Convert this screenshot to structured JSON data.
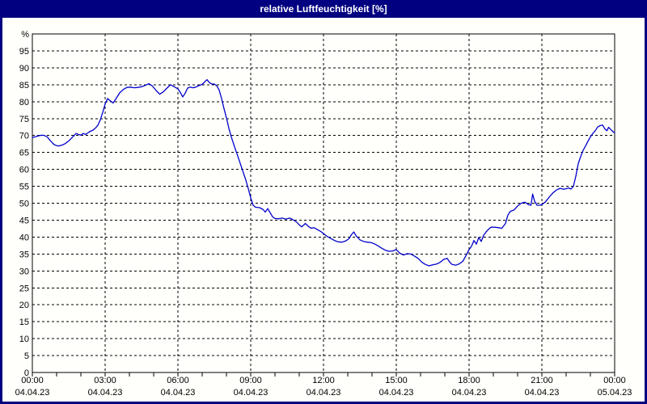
{
  "window": {
    "title": "relative Luftfeuchtigkeit [%]",
    "title_bg": "#000080",
    "title_color": "#ffffff",
    "border_color": "#000080",
    "canvas_bg": "#fffffb"
  },
  "chart_data": {
    "type": "line",
    "title": "relative Luftfeuchtigkeit [%]",
    "ylabel": "%",
    "xlabel": "",
    "ylim": [
      0,
      100
    ],
    "grid": "dashed",
    "legend": "none",
    "line_color": "#0000CD",
    "grid_color": "#000000",
    "axis_color": "#000000",
    "label_color": "#000000",
    "y_ticks": [
      0,
      5,
      10,
      15,
      20,
      25,
      30,
      35,
      40,
      45,
      50,
      55,
      60,
      65,
      70,
      75,
      80,
      85,
      90,
      95
    ],
    "y_unit_label": "%",
    "x_hours_total": 24,
    "x_minor_tick_every_hours": 1,
    "x_ticks": [
      {
        "t": 0,
        "time": "00:00",
        "date": "04.04.23"
      },
      {
        "t": 3,
        "time": "03:00",
        "date": "04.04.23"
      },
      {
        "t": 6,
        "time": "06:00",
        "date": "04.04.23"
      },
      {
        "t": 9,
        "time": "09:00",
        "date": "04.04.23"
      },
      {
        "t": 12,
        "time": "12:00",
        "date": "04.04.23"
      },
      {
        "t": 15,
        "time": "15:00",
        "date": "04.04.23"
      },
      {
        "t": 18,
        "time": "18:00",
        "date": "04.04.23"
      },
      {
        "t": 21,
        "time": "21:00",
        "date": "04.04.23"
      },
      {
        "t": 24,
        "time": "00:00",
        "date": "05.04.23"
      }
    ],
    "series": [
      {
        "name": "relative Luftfeuchtigkeit",
        "points": [
          [
            0.0,
            69.4
          ],
          [
            0.15,
            69.7
          ],
          [
            0.3,
            70.0
          ],
          [
            0.45,
            70.1
          ],
          [
            0.6,
            69.7
          ],
          [
            0.75,
            68.4
          ],
          [
            0.9,
            67.3
          ],
          [
            1.05,
            66.9
          ],
          [
            1.2,
            67.1
          ],
          [
            1.35,
            67.6
          ],
          [
            1.5,
            68.4
          ],
          [
            1.65,
            69.5
          ],
          [
            1.8,
            70.6
          ],
          [
            1.9,
            70.3
          ],
          [
            2.0,
            70.1
          ],
          [
            2.1,
            70.6
          ],
          [
            2.2,
            70.3
          ],
          [
            2.35,
            71.1
          ],
          [
            2.5,
            71.6
          ],
          [
            2.6,
            72.2
          ],
          [
            2.7,
            73.0
          ],
          [
            2.8,
            74.6
          ],
          [
            2.9,
            76.8
          ],
          [
            3.0,
            79.3
          ],
          [
            3.1,
            80.9
          ],
          [
            3.2,
            80.3
          ],
          [
            3.33,
            79.6
          ],
          [
            3.45,
            80.9
          ],
          [
            3.6,
            82.6
          ],
          [
            3.75,
            83.6
          ],
          [
            3.9,
            84.2
          ],
          [
            4.05,
            84.3
          ],
          [
            4.2,
            84.1
          ],
          [
            4.35,
            84.2
          ],
          [
            4.5,
            84.4
          ],
          [
            4.65,
            84.8
          ],
          [
            4.8,
            85.3
          ],
          [
            4.95,
            84.6
          ],
          [
            5.1,
            83.3
          ],
          [
            5.25,
            82.2
          ],
          [
            5.4,
            82.9
          ],
          [
            5.55,
            84.0
          ],
          [
            5.7,
            85.0
          ],
          [
            5.85,
            84.4
          ],
          [
            6.0,
            83.8
          ],
          [
            6.1,
            82.7
          ],
          [
            6.2,
            81.4
          ],
          [
            6.3,
            82.5
          ],
          [
            6.4,
            84.0
          ],
          [
            6.5,
            84.3
          ],
          [
            6.6,
            84.1
          ],
          [
            6.7,
            84.2
          ],
          [
            6.85,
            84.7
          ],
          [
            7.0,
            85.1
          ],
          [
            7.1,
            85.8
          ],
          [
            7.2,
            86.5
          ],
          [
            7.3,
            85.6
          ],
          [
            7.4,
            85.2
          ],
          [
            7.5,
            85.2
          ],
          [
            7.6,
            84.7
          ],
          [
            7.7,
            83.4
          ],
          [
            7.8,
            80.9
          ],
          [
            7.9,
            77.9
          ],
          [
            8.0,
            75.2
          ],
          [
            8.1,
            72.1
          ],
          [
            8.2,
            69.6
          ],
          [
            8.35,
            66.3
          ],
          [
            8.5,
            63.2
          ],
          [
            8.65,
            60.0
          ],
          [
            8.8,
            56.8
          ],
          [
            8.9,
            54.3
          ],
          [
            9.0,
            51.6
          ],
          [
            9.1,
            49.4
          ],
          [
            9.2,
            48.8
          ],
          [
            9.35,
            48.7
          ],
          [
            9.5,
            48.2
          ],
          [
            9.6,
            47.4
          ],
          [
            9.7,
            48.4
          ],
          [
            9.8,
            47.2
          ],
          [
            9.9,
            46.0
          ],
          [
            10.0,
            45.5
          ],
          [
            10.15,
            45.4
          ],
          [
            10.3,
            45.6
          ],
          [
            10.45,
            45.3
          ],
          [
            10.6,
            45.6
          ],
          [
            10.75,
            45.1
          ],
          [
            10.9,
            44.4
          ],
          [
            11.0,
            43.6
          ],
          [
            11.1,
            43.0
          ],
          [
            11.25,
            44.0
          ],
          [
            11.4,
            43.0
          ],
          [
            11.5,
            42.6
          ],
          [
            11.6,
            42.8
          ],
          [
            11.75,
            42.2
          ],
          [
            11.9,
            41.6
          ],
          [
            12.0,
            41.0
          ],
          [
            12.15,
            40.2
          ],
          [
            12.3,
            39.6
          ],
          [
            12.45,
            39.0
          ],
          [
            12.6,
            38.6
          ],
          [
            12.75,
            38.5
          ],
          [
            12.9,
            38.8
          ],
          [
            13.05,
            39.5
          ],
          [
            13.15,
            40.7
          ],
          [
            13.25,
            41.5
          ],
          [
            13.35,
            40.3
          ],
          [
            13.5,
            39.2
          ],
          [
            13.65,
            38.7
          ],
          [
            13.8,
            38.5
          ],
          [
            13.95,
            38.4
          ],
          [
            14.1,
            38.0
          ],
          [
            14.25,
            37.4
          ],
          [
            14.4,
            36.7
          ],
          [
            14.55,
            36.1
          ],
          [
            14.7,
            35.8
          ],
          [
            14.85,
            35.9
          ],
          [
            15.0,
            36.3
          ],
          [
            15.15,
            35.2
          ],
          [
            15.3,
            34.7
          ],
          [
            15.45,
            35.1
          ],
          [
            15.6,
            35.0
          ],
          [
            15.75,
            34.4
          ],
          [
            15.9,
            33.7
          ],
          [
            16.05,
            32.6
          ],
          [
            16.2,
            31.9
          ],
          [
            16.35,
            31.5
          ],
          [
            16.5,
            31.8
          ],
          [
            16.65,
            32.0
          ],
          [
            16.8,
            32.5
          ],
          [
            16.95,
            33.4
          ],
          [
            17.1,
            33.7
          ],
          [
            17.2,
            32.6
          ],
          [
            17.3,
            31.9
          ],
          [
            17.45,
            31.7
          ],
          [
            17.6,
            32.1
          ],
          [
            17.75,
            32.9
          ],
          [
            17.9,
            34.9
          ],
          [
            18.0,
            36.3
          ],
          [
            18.1,
            37.3
          ],
          [
            18.2,
            39.0
          ],
          [
            18.3,
            37.9
          ],
          [
            18.4,
            39.9
          ],
          [
            18.5,
            38.7
          ],
          [
            18.6,
            40.5
          ],
          [
            18.7,
            41.5
          ],
          [
            18.8,
            42.3
          ],
          [
            18.9,
            42.9
          ],
          [
            19.05,
            42.9
          ],
          [
            19.2,
            42.8
          ],
          [
            19.35,
            42.6
          ],
          [
            19.5,
            44.0
          ],
          [
            19.6,
            46.5
          ],
          [
            19.7,
            47.6
          ],
          [
            19.85,
            48.0
          ],
          [
            20.0,
            49.2
          ],
          [
            20.15,
            50.0
          ],
          [
            20.3,
            50.3
          ],
          [
            20.45,
            49.6
          ],
          [
            20.55,
            49.4
          ],
          [
            20.62,
            52.7
          ],
          [
            20.7,
            50.6
          ],
          [
            20.8,
            49.4
          ],
          [
            20.9,
            49.4
          ],
          [
            21.0,
            49.6
          ],
          [
            21.15,
            50.4
          ],
          [
            21.3,
            51.8
          ],
          [
            21.45,
            53.0
          ],
          [
            21.6,
            53.9
          ],
          [
            21.75,
            54.4
          ],
          [
            21.9,
            54.1
          ],
          [
            22.0,
            54.3
          ],
          [
            22.1,
            54.5
          ],
          [
            22.2,
            54.2
          ],
          [
            22.3,
            55.0
          ],
          [
            22.4,
            58.0
          ],
          [
            22.5,
            61.7
          ],
          [
            22.6,
            63.8
          ],
          [
            22.7,
            65.6
          ],
          [
            22.8,
            66.9
          ],
          [
            22.9,
            68.3
          ],
          [
            23.0,
            69.6
          ],
          [
            23.1,
            70.6
          ],
          [
            23.2,
            71.4
          ],
          [
            23.3,
            72.5
          ],
          [
            23.4,
            72.9
          ],
          [
            23.5,
            73.1
          ],
          [
            23.6,
            71.9
          ],
          [
            23.68,
            71.4
          ],
          [
            23.75,
            72.4
          ],
          [
            23.85,
            71.7
          ],
          [
            23.95,
            71.0
          ],
          [
            24.0,
            70.8
          ]
        ]
      }
    ]
  }
}
